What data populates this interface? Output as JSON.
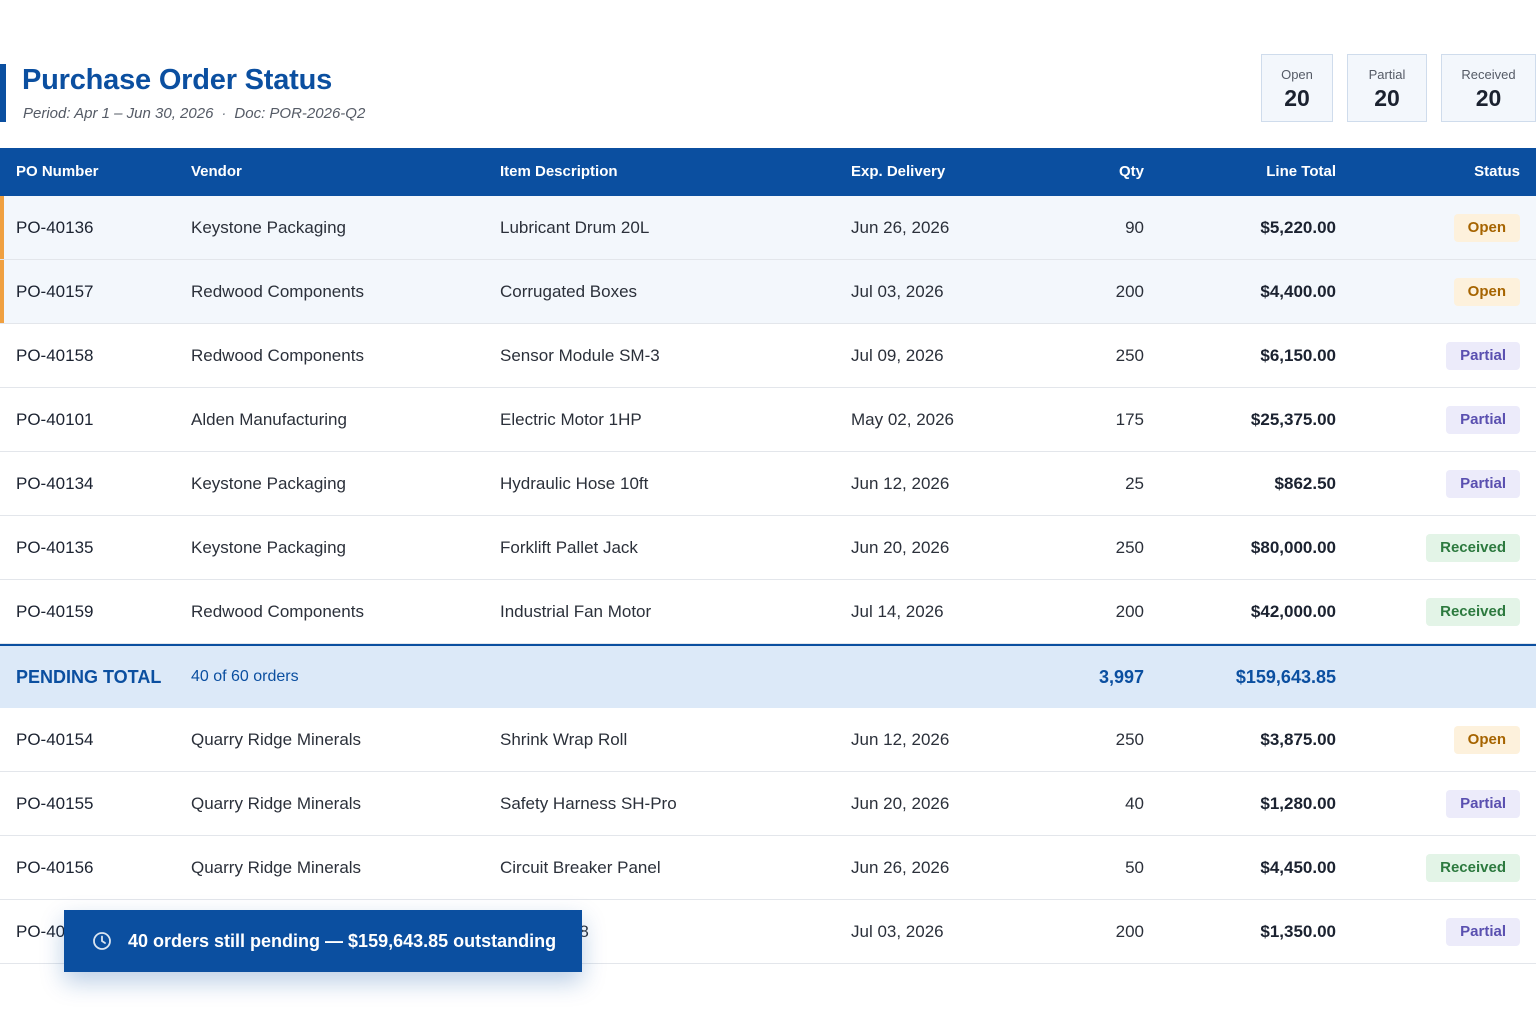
{
  "header": {
    "title": "Purchase Order Status",
    "period": "Period: Apr 1 – Jun 30, 2026",
    "separator": "·",
    "doc": "Doc: POR-2026-Q2"
  },
  "stats": {
    "open": {
      "label": "Open",
      "value": "20"
    },
    "partial": {
      "label": "Partial",
      "value": "20"
    },
    "received": {
      "label": "Received",
      "value": "20"
    }
  },
  "columns": {
    "po": "PO Number",
    "vendor": "Vendor",
    "item": "Item Description",
    "delivery": "Exp. Delivery",
    "qty": "Qty",
    "total": "Line Total",
    "status": "Status"
  },
  "rows_top": [
    {
      "po": "PO-40136",
      "vendor": "Keystone Packaging",
      "item": "Lubricant Drum 20L",
      "delivery": "Jun 26, 2026",
      "qty": "90",
      "total": "$5,220.00",
      "status": "Open",
      "flag": true
    },
    {
      "po": "PO-40157",
      "vendor": "Redwood Components",
      "item": "Corrugated Boxes",
      "delivery": "Jul 03, 2026",
      "qty": "200",
      "total": "$4,400.00",
      "status": "Open",
      "flag": true
    },
    {
      "po": "PO-40158",
      "vendor": "Redwood Components",
      "item": "Sensor Module SM-3",
      "delivery": "Jul 09, 2026",
      "qty": "250",
      "total": "$6,150.00",
      "status": "Partial"
    },
    {
      "po": "PO-40101",
      "vendor": "Alden Manufacturing",
      "item": "Electric Motor 1HP",
      "delivery": "May 02, 2026",
      "qty": "175",
      "total": "$25,375.00",
      "status": "Partial"
    },
    {
      "po": "PO-40134",
      "vendor": "Keystone Packaging",
      "item": "Hydraulic Hose 10ft",
      "delivery": "Jun 12, 2026",
      "qty": "25",
      "total": "$862.50",
      "status": "Partial"
    },
    {
      "po": "PO-40135",
      "vendor": "Keystone Packaging",
      "item": "Forklift Pallet Jack",
      "delivery": "Jun 20, 2026",
      "qty": "250",
      "total": "$80,000.00",
      "status": "Received"
    },
    {
      "po": "PO-40159",
      "vendor": "Redwood Components",
      "item": "Industrial Fan Motor",
      "delivery": "Jul 14, 2026",
      "qty": "200",
      "total": "$42,000.00",
      "status": "Received"
    }
  ],
  "pending_total": {
    "label": "PENDING TOTAL",
    "count": "40 of 60 orders",
    "qty": "3,997",
    "total": "$159,643.85"
  },
  "rows_bottom": [
    {
      "po": "PO-40154",
      "vendor": "Quarry Ridge Minerals",
      "item": "Shrink Wrap Roll",
      "delivery": "Jun 12, 2026",
      "qty": "250",
      "total": "$3,875.00",
      "status": "Open"
    },
    {
      "po": "PO-40155",
      "vendor": "Quarry Ridge Minerals",
      "item": "Safety Harness SH-Pro",
      "delivery": "Jun 20, 2026",
      "qty": "40",
      "total": "$1,280.00",
      "status": "Partial"
    },
    {
      "po": "PO-40156",
      "vendor": "Quarry Ridge Minerals",
      "item": "Circuit Breaker Panel",
      "delivery": "Jun 26, 2026",
      "qty": "50",
      "total": "$4,450.00",
      "status": "Received"
    },
    {
      "po": "PO-40",
      "vendor": "",
      "item": "Roller CR-8",
      "delivery": "Jul 03, 2026",
      "qty": "200",
      "total": "$1,350.00",
      "status": "Partial"
    }
  ],
  "toast": {
    "icon": "clock-icon",
    "message": "40 orders still pending — $159,643.85 outstanding"
  },
  "colors": {
    "brand": "#0b4fa0",
    "flag": "#f0a040",
    "open_bg": "#fdf1dc",
    "partial_bg": "#ecebfa",
    "received_bg": "#e3f4e7"
  }
}
